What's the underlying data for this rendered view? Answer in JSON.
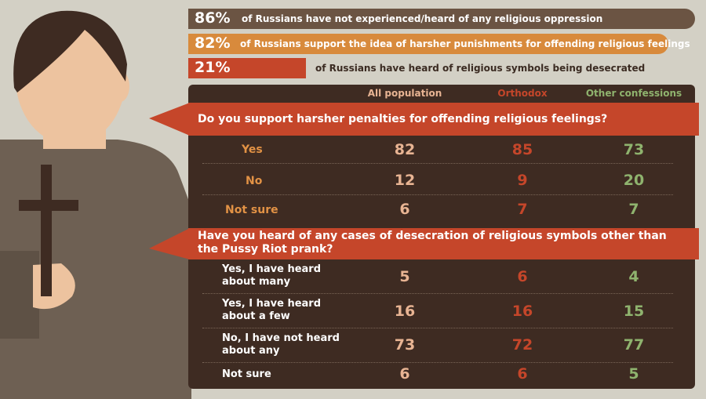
{
  "colors": {
    "background": "#d3d0c5",
    "panel": "#3e2b22",
    "accent_red": "#c5462a",
    "accent_orange": "#d88a3c",
    "bar_brown": "#6b5443",
    "all_population": "#e8b493",
    "orthodox": "#c5462a",
    "other_confessions": "#8fb36e"
  },
  "icons": [
    "person-illustration",
    "orthodox-cross-icon"
  ],
  "chart_data": [
    {
      "type": "bar",
      "categories": [
        "of Russians have not experienced/heard of any religious oppression",
        "of Russians support the idea of harsher punishments for offending religious feelings",
        "of Russians have heard of religious symbols being desecrated"
      ],
      "value_labels": [
        "86%",
        "82%",
        "21%"
      ],
      "values": [
        86,
        82,
        21
      ],
      "unit": "%"
    },
    {
      "type": "table",
      "columns": [
        "All population",
        "Orthodox",
        "Other confessions"
      ],
      "question": "Do you support harsher penalties for offending religious feelings?",
      "rows": [
        {
          "label": "Yes",
          "values": [
            82,
            85,
            73
          ]
        },
        {
          "label": "No",
          "values": [
            12,
            9,
            20
          ]
        },
        {
          "label": "Not sure",
          "values": [
            6,
            7,
            7
          ]
        }
      ]
    },
    {
      "type": "table",
      "columns": [
        "All population",
        "Orthodox",
        "Other confessions"
      ],
      "question": "Have you heard of any cases of desecration of religious symbols other than the Pussy Riot prank?",
      "rows": [
        {
          "label": "Yes, I have heard about many",
          "values": [
            5,
            6,
            4
          ]
        },
        {
          "label": "Yes, I have heard about a few",
          "values": [
            16,
            16,
            15
          ]
        },
        {
          "label": "No, I have not heard about any",
          "values": [
            73,
            72,
            77
          ]
        },
        {
          "label": "Not sure",
          "values": [
            6,
            6,
            5
          ]
        }
      ]
    }
  ]
}
